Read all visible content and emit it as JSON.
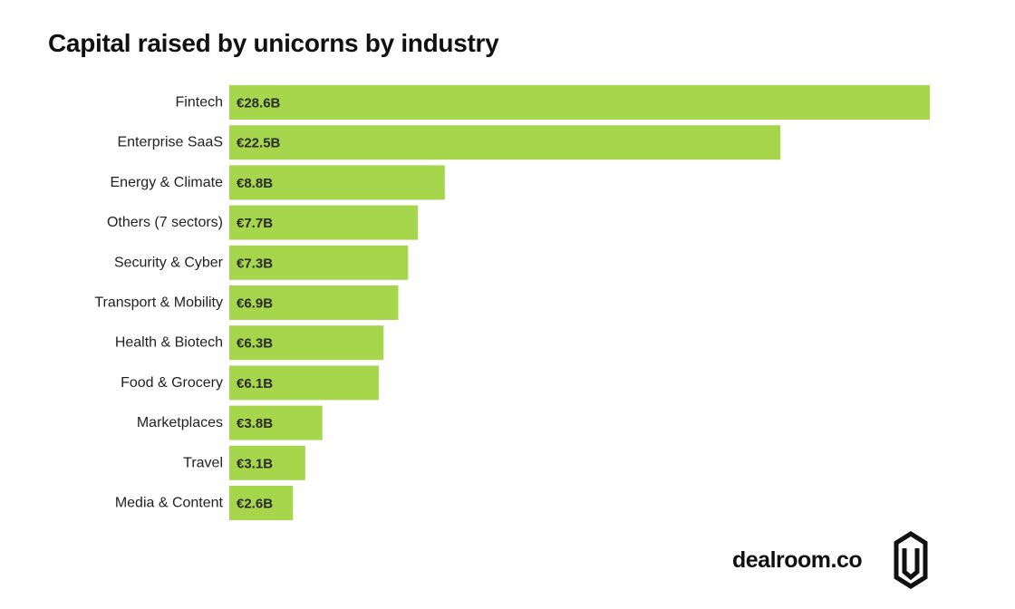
{
  "chart_data": {
    "type": "bar",
    "orientation": "horizontal",
    "title": "Capital raised by unicorns by industry",
    "categories": [
      "Fintech",
      "Enterprise SaaS",
      "Energy & Climate",
      "Others (7 sectors)",
      "Security & Cyber",
      "Transport & Mobility",
      "Health & Biotech",
      "Food & Grocery",
      "Marketplaces",
      "Travel",
      "Media & Content"
    ],
    "values": [
      28.6,
      22.5,
      8.8,
      7.7,
      7.3,
      6.9,
      6.3,
      6.1,
      3.8,
      3.1,
      2.6
    ],
    "value_labels": [
      "€28.6B",
      "€22.5B",
      "€8.8B",
      "€7.7B",
      "€7.3B",
      "€6.9B",
      "€6.3B",
      "€6.1B",
      "€3.8B",
      "€3.1B",
      "€2.6B"
    ],
    "unit": "€B",
    "xlabel": "",
    "ylabel": "",
    "xlim": [
      0,
      28.6
    ],
    "grid": false,
    "legend": "none",
    "bar_color": "#a5d64c"
  },
  "brand": {
    "name": "dealroom.co",
    "logo_icon": "dealroom-logo-icon"
  }
}
